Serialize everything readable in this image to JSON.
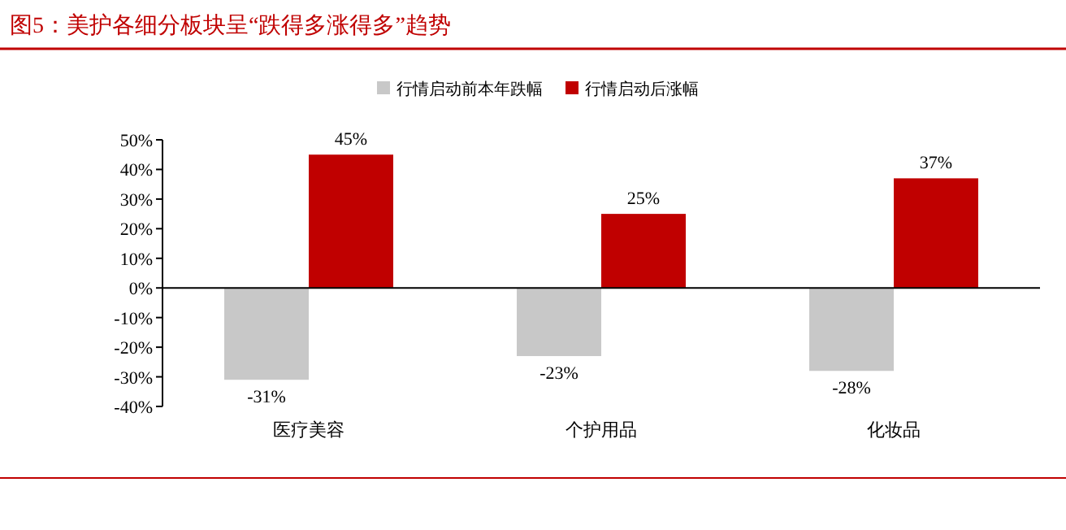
{
  "chart_data": {
    "type": "bar",
    "title": "图5：美护各细分板块呈“跌得多涨得多”趋势",
    "categories": [
      "医疗美容",
      "个护用品",
      "化妆品"
    ],
    "series": [
      {
        "name": "行情启动前本年跌幅",
        "color": "#c8c8c8",
        "values": [
          -31,
          -23,
          -28
        ],
        "value_labels": [
          "-31%",
          "-23%",
          "-28%"
        ]
      },
      {
        "name": "行情启动后涨幅",
        "color": "#c00000",
        "values": [
          45,
          25,
          37
        ],
        "value_labels": [
          "45%",
          "25%",
          "37%"
        ]
      }
    ],
    "ylim": [
      -40,
      50
    ],
    "yticks": [
      {
        "value": -40,
        "label": "-40%"
      },
      {
        "value": -30,
        "label": "-30%"
      },
      {
        "value": -20,
        "label": "-20%"
      },
      {
        "value": -10,
        "label": "-10%"
      },
      {
        "value": 0,
        "label": "0%"
      },
      {
        "value": 10,
        "label": "10%"
      },
      {
        "value": 20,
        "label": "20%"
      },
      {
        "value": 30,
        "label": "30%"
      },
      {
        "value": 40,
        "label": "40%"
      },
      {
        "value": 50,
        "label": "50%"
      }
    ],
    "legend": "top"
  }
}
